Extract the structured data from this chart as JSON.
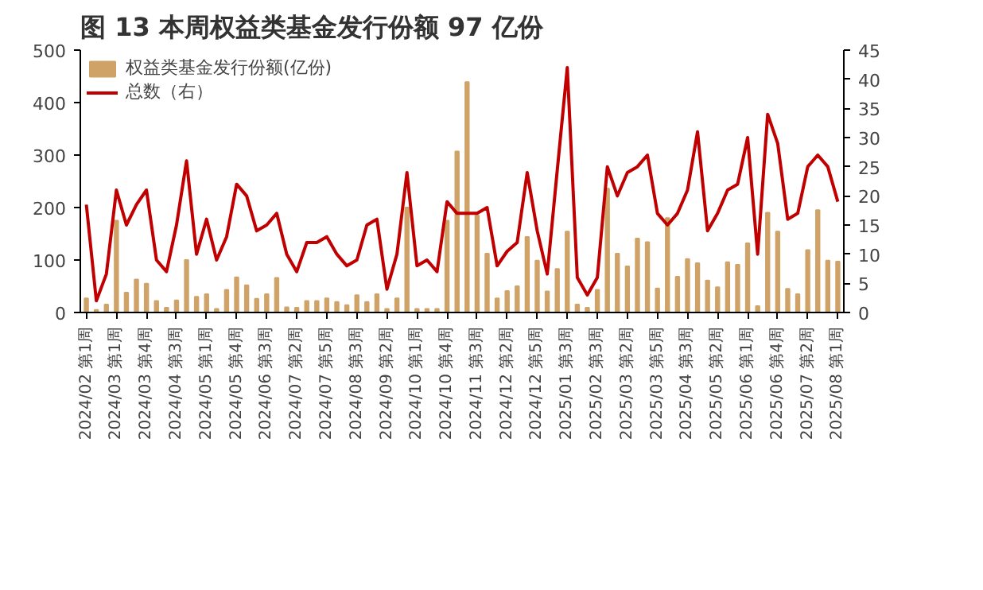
{
  "chart_data": {
    "type": "bar",
    "title": "图 13 本周权益类基金发行份额 97 亿份",
    "categories": [
      "2024/02 第1周",
      null,
      null,
      "2024/03 第1周",
      null,
      null,
      "2024/03 第4周",
      null,
      null,
      "2024/04 第3周",
      null,
      null,
      "2024/05 第1周",
      null,
      null,
      "2024/05 第4周",
      null,
      null,
      "2024/06 第3周",
      null,
      null,
      "2024/07 第2周",
      null,
      null,
      "2024/07 第5周",
      null,
      null,
      "2024/08 第3周",
      null,
      null,
      "2024/09 第2周",
      null,
      null,
      "2024/10 第1周",
      null,
      null,
      "2024/10 第4周",
      null,
      null,
      "2024/11 第3周",
      null,
      null,
      "2024/12 第2周",
      null,
      null,
      "2024/12 第5周",
      null,
      null,
      "2025/01 第3周",
      null,
      null,
      "2025/02 第3周",
      null,
      null,
      "2025/03 第2周",
      null,
      null,
      "2025/03 第5周",
      null,
      null,
      "2025/04 第3周",
      null,
      null,
      "2025/05 第2周",
      null,
      null,
      "2025/06 第1周",
      null,
      null,
      "2025/06 第4周",
      null,
      null,
      "2025/07 第2周",
      null,
      null,
      "2025/08 第1周"
    ],
    "series": [
      {
        "name": "权益类基金发行份额(亿份)",
        "color": "#cfa368",
        "values": [
          27,
          5,
          15,
          175,
          38,
          63,
          55,
          22,
          9,
          23,
          100,
          30,
          35,
          7,
          43,
          67,
          52,
          26,
          35,
          66,
          10,
          9,
          22,
          22,
          27,
          20,
          14,
          33,
          20,
          35,
          7,
          27,
          200,
          7,
          7,
          7,
          175,
          307,
          439,
          185,
          112,
          27,
          41,
          50,
          144,
          99,
          40,
          83,
          154,
          15,
          9,
          43,
          236,
          112,
          88,
          141,
          134,
          46,
          180,
          68,
          102,
          94,
          61,
          48,
          96,
          91,
          132,
          12,
          190,
          154,
          45,
          35,
          119,
          195,
          99,
          97
        ]
      },
      {
        "name": "总数（右）",
        "type": "line",
        "axis": "y2",
        "color": "#c00000",
        "values": [
          18.5,
          2,
          6.6,
          21,
          15,
          18.5,
          21,
          9,
          7,
          15,
          26,
          10,
          16,
          9,
          13,
          22,
          20,
          14,
          15,
          17,
          10,
          7,
          12,
          12,
          13,
          10,
          8,
          9,
          15,
          16,
          4,
          10,
          24,
          8,
          9,
          7,
          19,
          17,
          17,
          17,
          18,
          8,
          10.5,
          12,
          24,
          14,
          6.6,
          24.4,
          42,
          6,
          3,
          6,
          25,
          20,
          24,
          25,
          27,
          17,
          15,
          17,
          21,
          31,
          14,
          17,
          21,
          22,
          30,
          10,
          34,
          29,
          16,
          17,
          25,
          27,
          25,
          19
        ]
      }
    ],
    "ylim": [
      0,
      500
    ],
    "yticks": [
      0,
      100,
      200,
      300,
      400,
      500
    ],
    "y2lim": [
      0,
      45
    ],
    "y2ticks": [
      0,
      5,
      10,
      15,
      20,
      25,
      30,
      35,
      40,
      45
    ],
    "legend": "top left"
  }
}
